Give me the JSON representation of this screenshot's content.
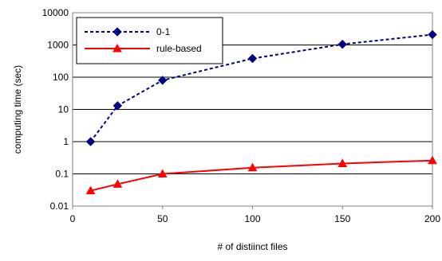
{
  "chart_data": {
    "type": "line",
    "title": "",
    "xlabel": "# of distiinct files",
    "ylabel": "computing time (sec)",
    "x": [
      10,
      25,
      50,
      100,
      150,
      200
    ],
    "xlim": [
      0,
      200
    ],
    "ylim": [
      0.01,
      10000
    ],
    "yscale": "log",
    "grid": "horizontal",
    "legend_position": "top-left",
    "x_ticks": [
      "0",
      "50",
      "100",
      "150",
      "200"
    ],
    "y_ticks": [
      "0.01",
      "0.1",
      "1",
      "10",
      "100",
      "1000",
      "10000"
    ],
    "series": [
      {
        "name": "0-1",
        "values": [
          1,
          13,
          80,
          380,
          1050,
          2100
        ],
        "color": "#000080",
        "line_style": "dotted",
        "marker": "diamond"
      },
      {
        "name": "rule-based",
        "values": [
          0.03,
          0.048,
          0.1,
          0.155,
          0.21,
          0.26
        ],
        "color": "#ff0000",
        "line_style": "solid",
        "marker": "triangle"
      }
    ]
  }
}
